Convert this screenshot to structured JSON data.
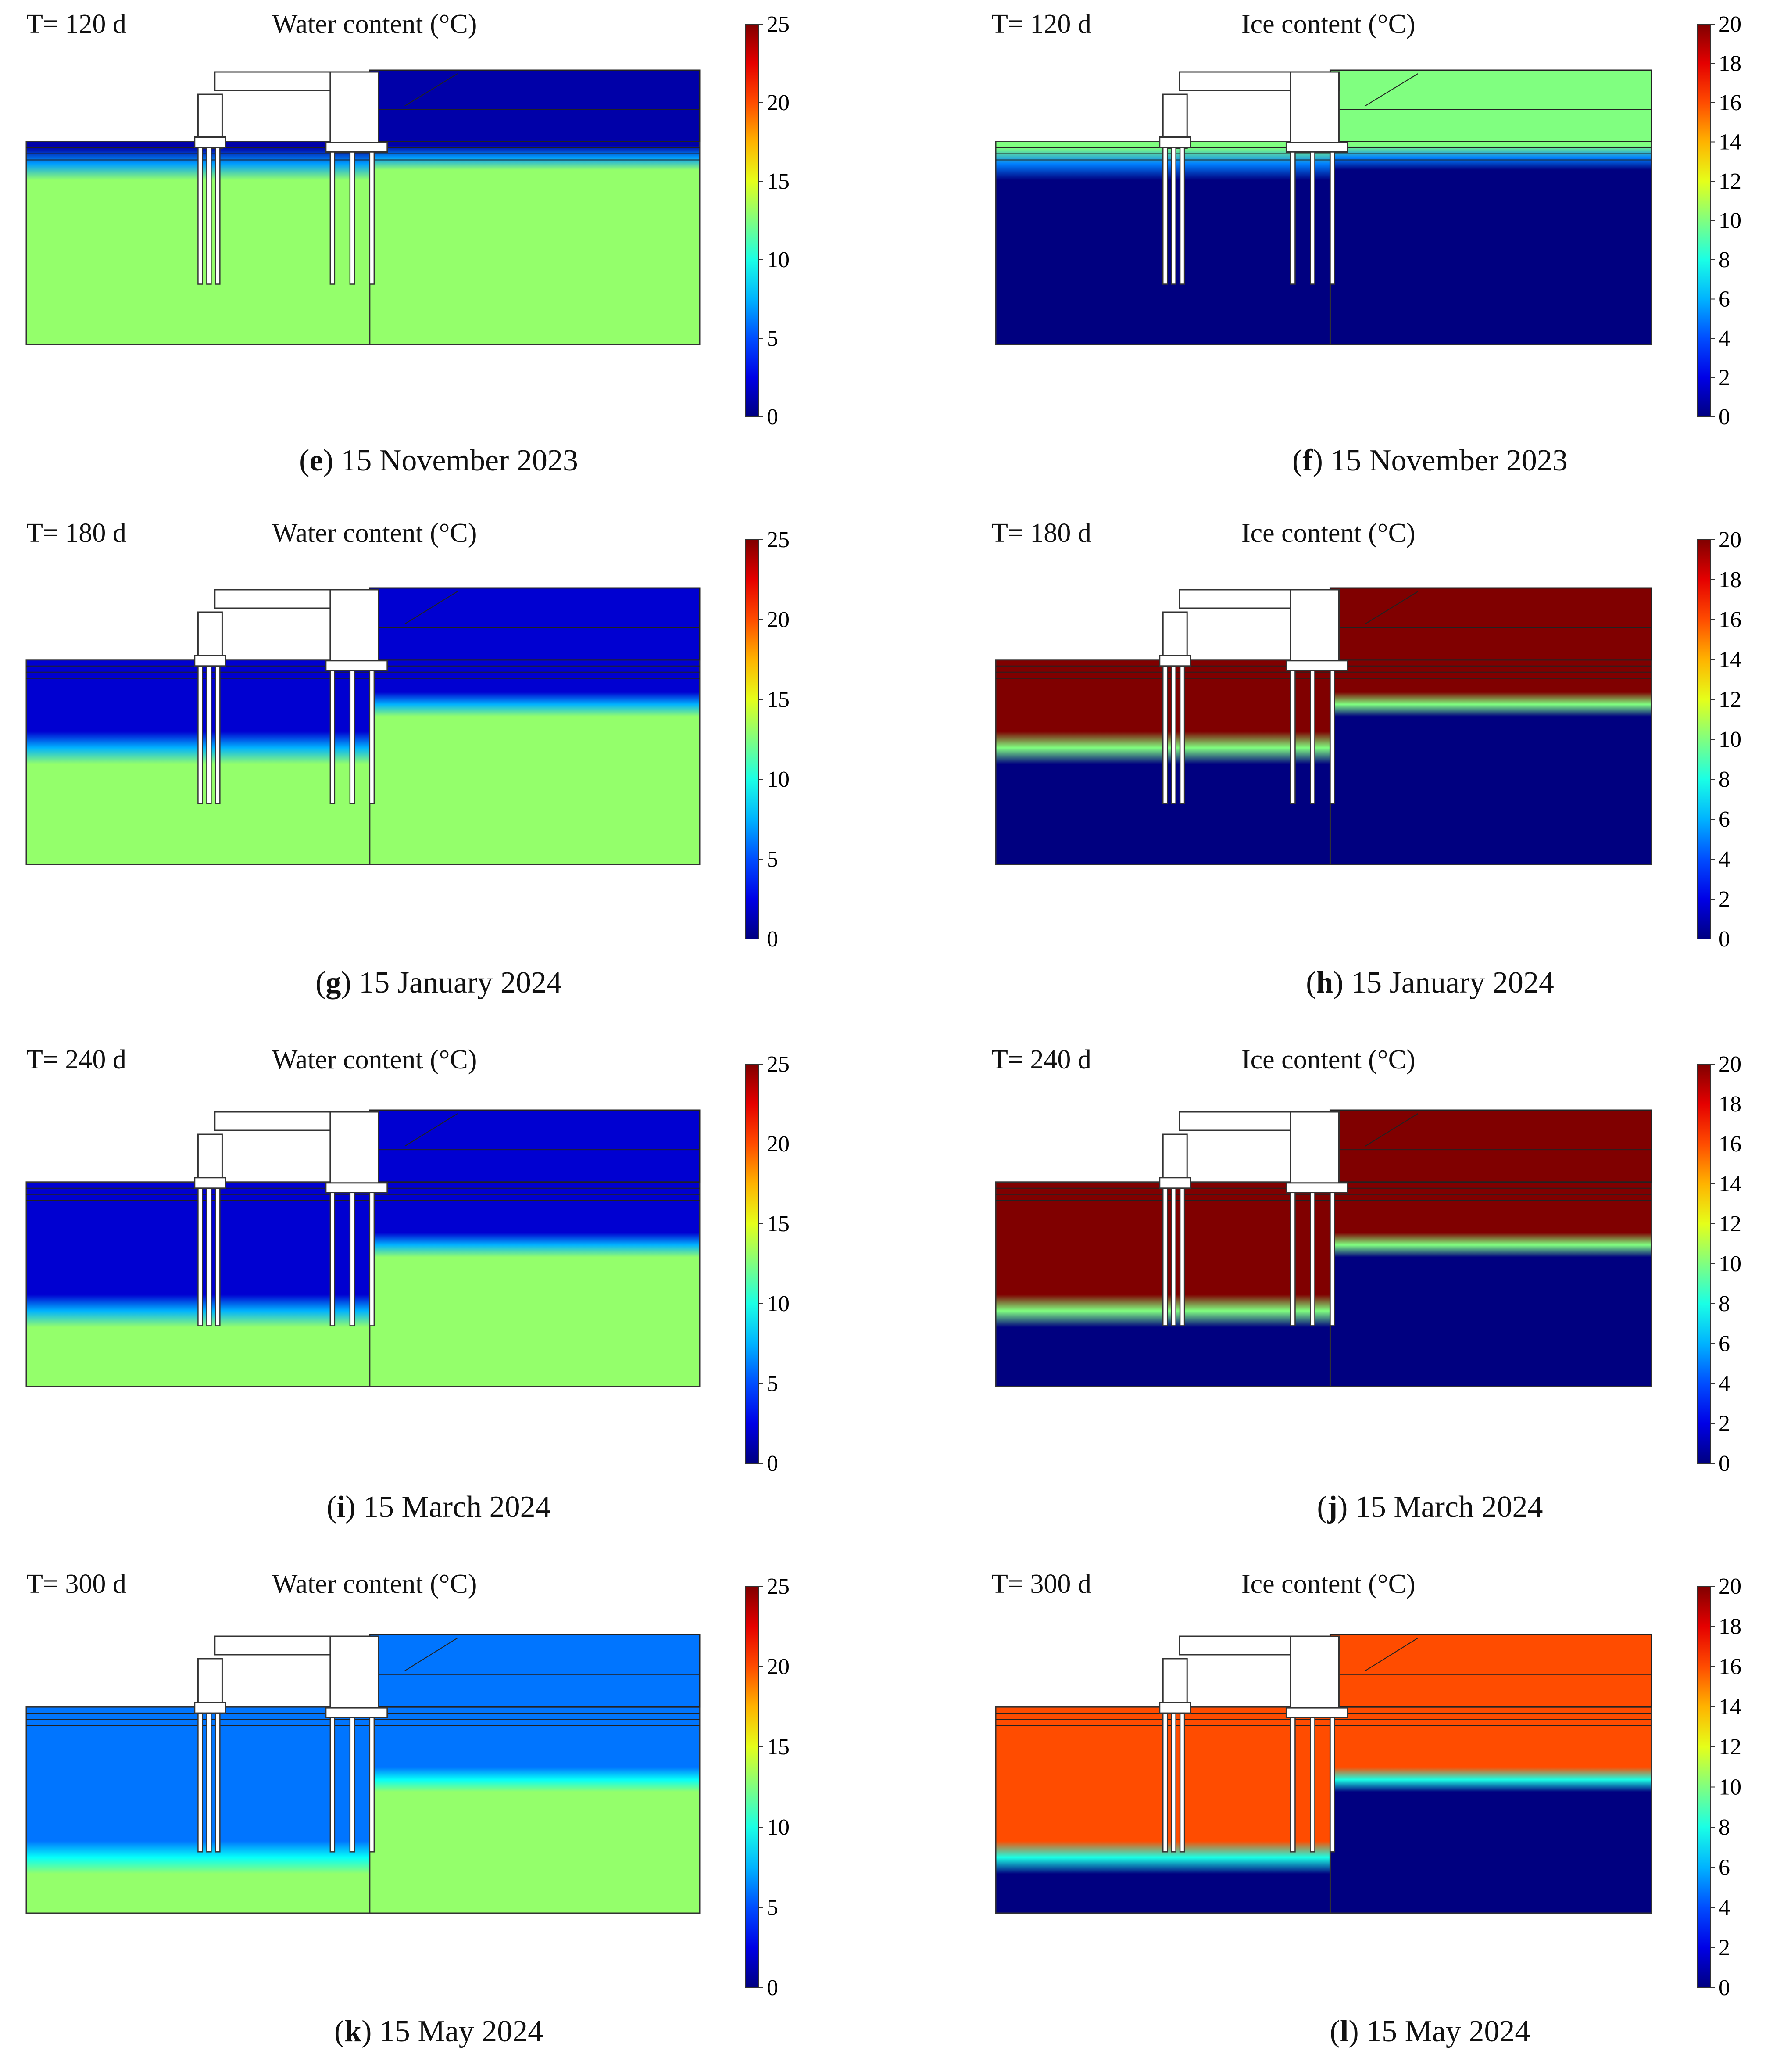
{
  "figure": {
    "panels": [
      {
        "id": "e",
        "time_label": "T= 120 d",
        "quantity_label": "Water content (°C)",
        "caption_letter": "e",
        "caption_date": "15 November 2023"
      },
      {
        "id": "f",
        "time_label": "T= 120 d",
        "quantity_label": "Ice content (°C)",
        "caption_letter": "f",
        "caption_date": "15 November 2023"
      },
      {
        "id": "g",
        "time_label": "T= 180 d",
        "quantity_label": "Water content (°C)",
        "caption_letter": "g",
        "caption_date": "15 January 2024"
      },
      {
        "id": "h",
        "time_label": "T= 180 d",
        "quantity_label": "Ice content (°C)",
        "caption_letter": "h",
        "caption_date": "15 January 2024"
      },
      {
        "id": "i",
        "time_label": "T= 240 d",
        "quantity_label": "Water content (°C)",
        "caption_letter": "i",
        "caption_date": "15 March 2024"
      },
      {
        "id": "j",
        "time_label": "T= 240 d",
        "quantity_label": "Ice content (°C)",
        "caption_letter": "j",
        "caption_date": "15 March 2024"
      },
      {
        "id": "k",
        "time_label": "T= 300 d",
        "quantity_label": "Water content (°C)",
        "caption_letter": "k",
        "caption_date": "15 May 2024"
      },
      {
        "id": "l",
        "time_label": "T= 300 d",
        "quantity_label": "Ice content (°C)",
        "caption_letter": "l",
        "caption_date": "15 May 2024"
      }
    ],
    "caption_open": "(",
    "caption_close": ")"
  },
  "chart_data": [
    {
      "type": "heatmap",
      "panel": "e",
      "title": "Water content (°C)",
      "time_days": 120,
      "colorbar": {
        "min": 0,
        "max": 25,
        "ticks": [
          0,
          5,
          10,
          15,
          20,
          25
        ]
      },
      "background_value": 13,
      "surface_value": 1
    },
    {
      "type": "heatmap",
      "panel": "f",
      "title": "Ice content (°C)",
      "time_days": 120,
      "colorbar": {
        "min": 0,
        "max": 20,
        "ticks": [
          0,
          2,
          4,
          6,
          8,
          10,
          12,
          14,
          16,
          18,
          20
        ]
      },
      "background_value": 0,
      "surface_value": 10
    },
    {
      "type": "heatmap",
      "panel": "g",
      "title": "Water content (°C)",
      "time_days": 180,
      "colorbar": {
        "min": 0,
        "max": 25,
        "ticks": [
          0,
          5,
          10,
          15,
          20,
          25
        ]
      },
      "background_value": 13,
      "frozen_value": 2
    },
    {
      "type": "heatmap",
      "panel": "h",
      "title": "Ice content (°C)",
      "time_days": 180,
      "colorbar": {
        "min": 0,
        "max": 20,
        "ticks": [
          0,
          2,
          4,
          6,
          8,
          10,
          12,
          14,
          16,
          18,
          20
        ]
      },
      "background_value": 0,
      "frozen_value": 20
    },
    {
      "type": "heatmap",
      "panel": "i",
      "title": "Water content (°C)",
      "time_days": 240,
      "colorbar": {
        "min": 0,
        "max": 25,
        "ticks": [
          0,
          5,
          10,
          15,
          20,
          25
        ]
      },
      "background_value": 13,
      "frozen_value": 2
    },
    {
      "type": "heatmap",
      "panel": "j",
      "title": "Ice content (°C)",
      "time_days": 240,
      "colorbar": {
        "min": 0,
        "max": 20,
        "ticks": [
          0,
          2,
          4,
          6,
          8,
          10,
          12,
          14,
          16,
          18,
          20
        ]
      },
      "background_value": 0,
      "frozen_value": 20
    },
    {
      "type": "heatmap",
      "panel": "k",
      "title": "Water content (°C)",
      "time_days": 300,
      "colorbar": {
        "min": 0,
        "max": 25,
        "ticks": [
          0,
          5,
          10,
          15,
          20,
          25
        ]
      },
      "background_value": 13,
      "frozen_value": 6
    },
    {
      "type": "heatmap",
      "panel": "l",
      "title": "Ice content (°C)",
      "time_days": 300,
      "colorbar": {
        "min": 0,
        "max": 20,
        "ticks": [
          0,
          2,
          4,
          6,
          8,
          10,
          12,
          14,
          16,
          18,
          20
        ]
      },
      "background_value": 0,
      "frozen_value": 16
    }
  ]
}
